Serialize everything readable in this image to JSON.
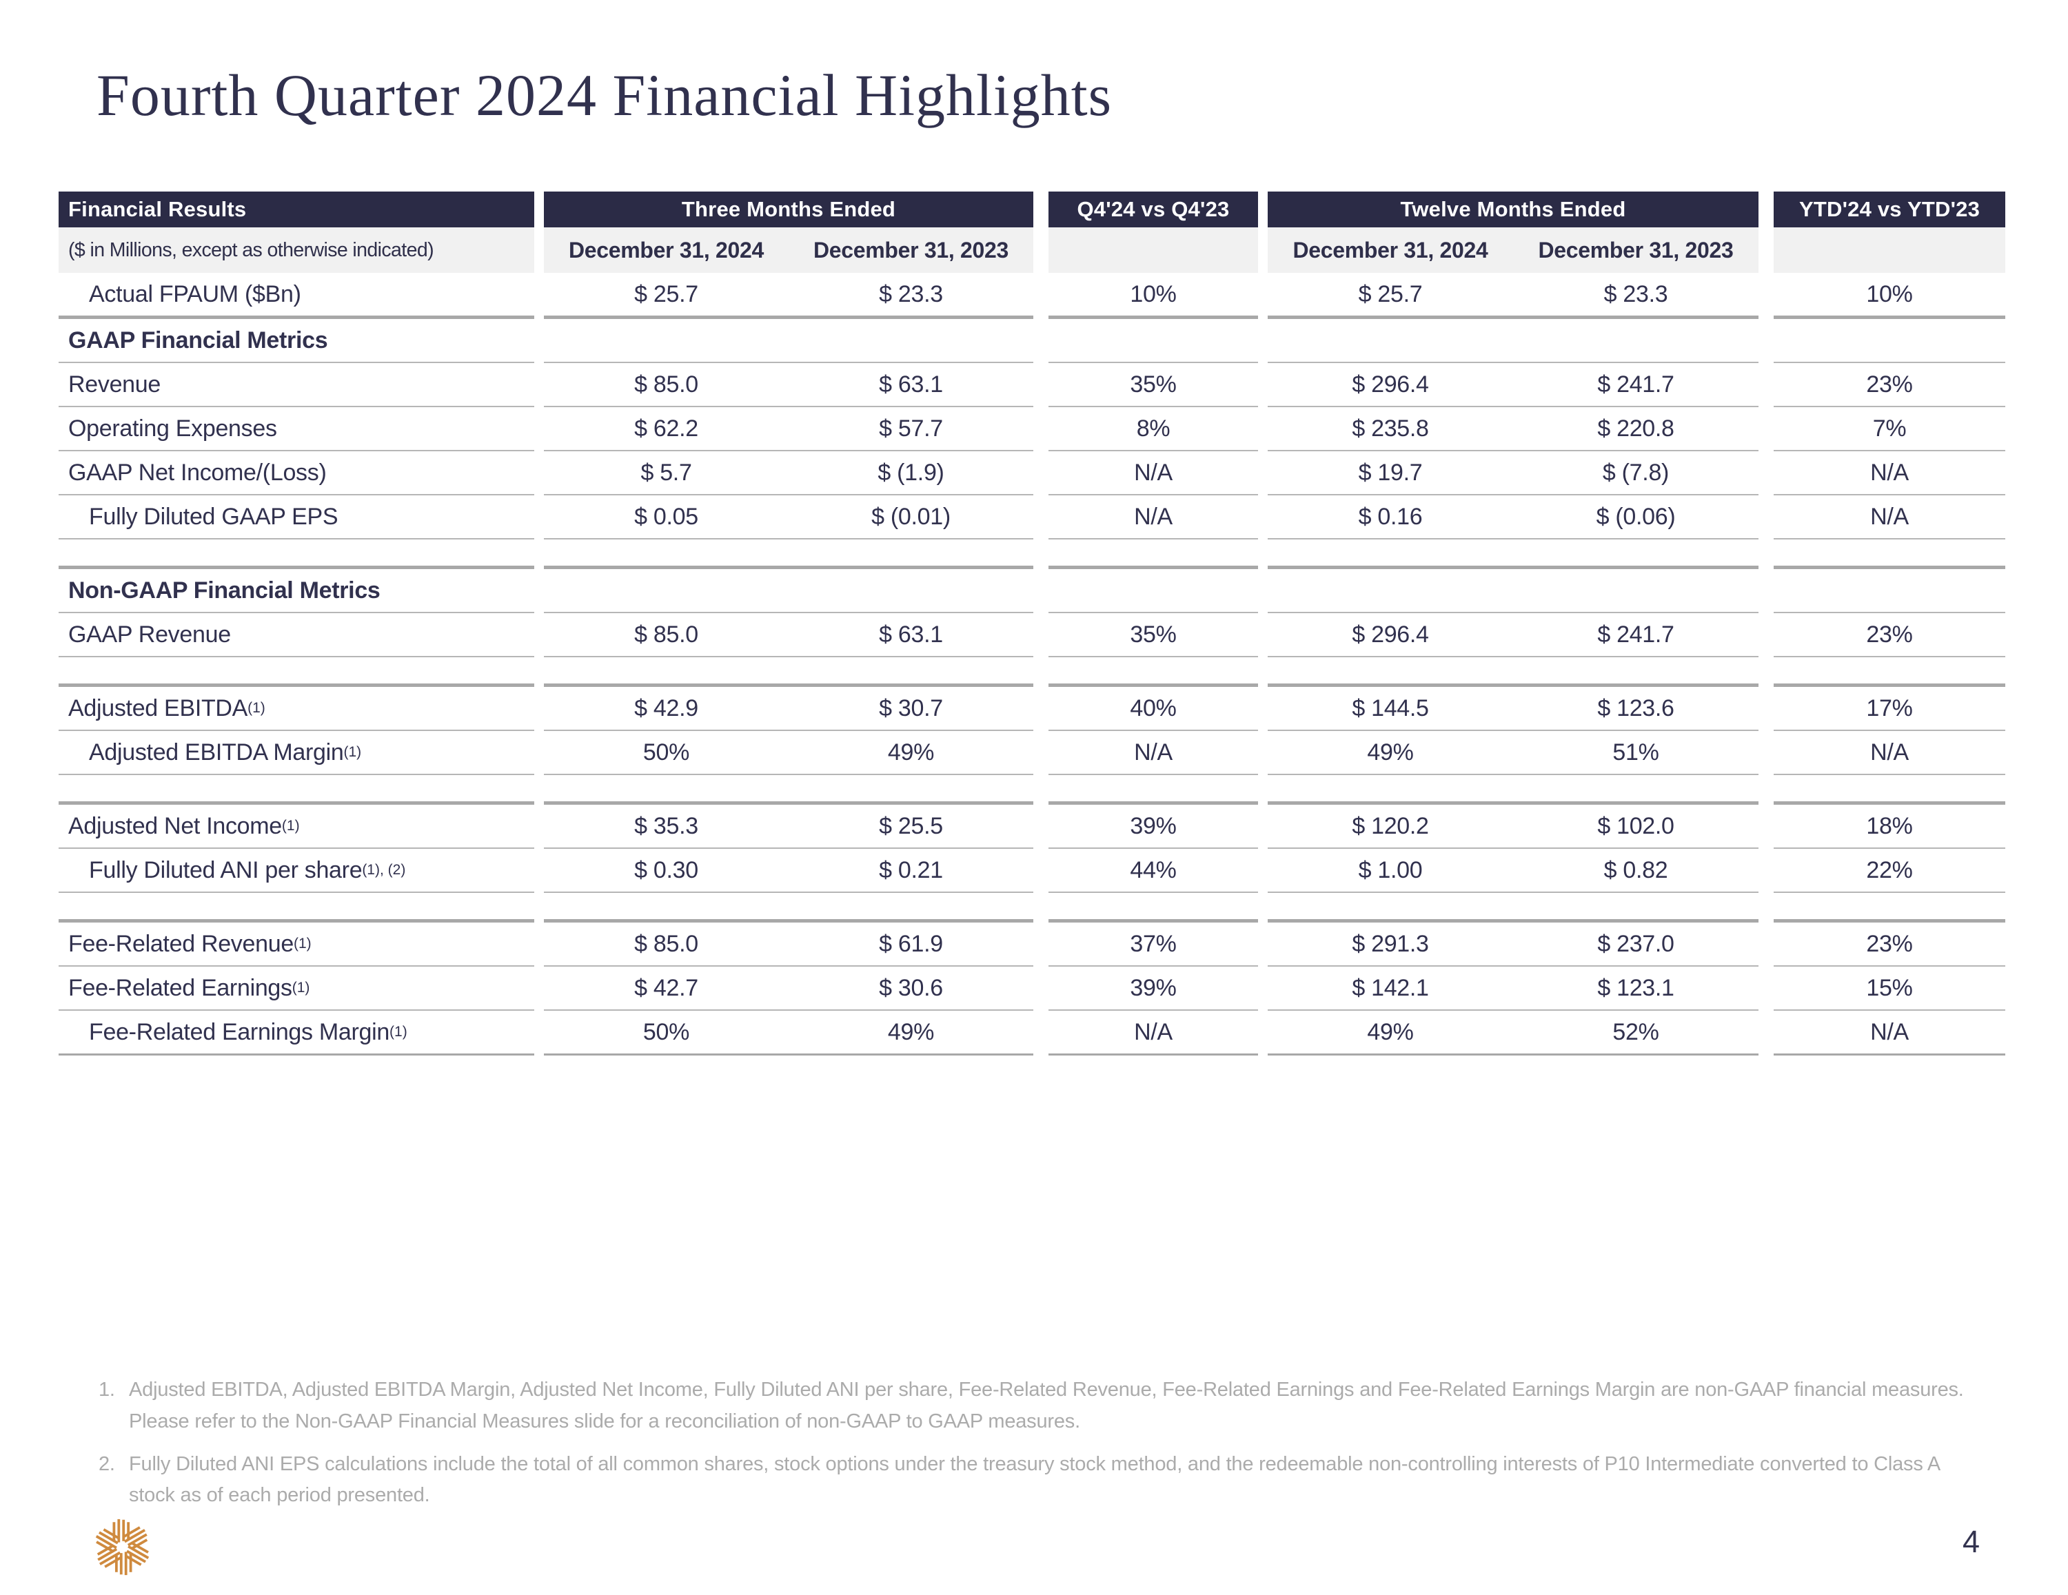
{
  "page": {
    "title": "Fourth Quarter 2024 Financial Highlights",
    "page_number": "4"
  },
  "colors": {
    "header_band": "#2b2b46",
    "text_navy": "#31314e",
    "subheader_bg": "#f1f1f1",
    "divider_gray": "#a8a8a8",
    "footnote_gray": "#ababab",
    "logo_orange": "#cf8a3e"
  },
  "table": {
    "groups": [
      {
        "label": "Financial Results",
        "sub": "($ in Millions, except as otherwise indicated)"
      },
      {
        "label": "Three Months Ended",
        "cols": [
          "December 31, 2024",
          "December 31, 2023"
        ]
      },
      {
        "label": "Q4'24 vs Q4'23"
      },
      {
        "label": "Twelve Months Ended",
        "cols": [
          "December 31, 2024",
          "December 31, 2023"
        ]
      },
      {
        "label": "YTD'24 vs YTD'23"
      }
    ],
    "rows": [
      {
        "type": "data",
        "indent": true,
        "label": "Actual FPAUM ($Bn)",
        "sup": "",
        "cells": [
          "$ 25.7",
          "$ 23.3",
          "10%",
          "$ 25.7",
          "$ 23.3",
          "10%"
        ],
        "border": "med"
      },
      {
        "type": "section",
        "label": "GAAP Financial Metrics",
        "border": "thin"
      },
      {
        "type": "data",
        "label": "Revenue",
        "sup": "",
        "cells": [
          "$ 85.0",
          "$ 63.1",
          "35%",
          "$ 296.4",
          "$ 241.7",
          "23%"
        ],
        "border": "thin"
      },
      {
        "type": "data",
        "label": "Operating Expenses",
        "sup": "",
        "cells": [
          "$ 62.2",
          "$ 57.7",
          "8%",
          "$ 235.8",
          "$ 220.8",
          "7%"
        ],
        "border": "thin"
      },
      {
        "type": "data",
        "label": "GAAP Net Income/(Loss)",
        "sup": "",
        "cells": [
          "$ 5.7",
          "$ (1.9)",
          "N/A",
          "$ 19.7",
          "$ (7.8)",
          "N/A"
        ],
        "border": "thin"
      },
      {
        "type": "data",
        "indent": true,
        "label": "Fully Diluted GAAP EPS",
        "sup": "",
        "cells": [
          "$ 0.05",
          "$ (0.01)",
          "N/A",
          "$ 0.16",
          "$ (0.06)",
          "N/A"
        ],
        "border": "thin"
      },
      {
        "type": "spacer",
        "border": "med"
      },
      {
        "type": "section",
        "label": "Non-GAAP Financial Metrics",
        "border": "thin"
      },
      {
        "type": "data",
        "label": "GAAP Revenue",
        "sup": "",
        "cells": [
          "$ 85.0",
          "$ 63.1",
          "35%",
          "$ 296.4",
          "$ 241.7",
          "23%"
        ],
        "border": "thin"
      },
      {
        "type": "spacer",
        "border": "med"
      },
      {
        "type": "data",
        "label": "Adjusted EBITDA",
        "sup": "(1)",
        "cells": [
          "$ 42.9",
          "$ 30.7",
          "40%",
          "$ 144.5",
          "$ 123.6",
          "17%"
        ],
        "border": "thin"
      },
      {
        "type": "data",
        "indent": true,
        "label": "Adjusted EBITDA Margin",
        "sup": "(1)",
        "cells": [
          "50%",
          "49%",
          "N/A",
          "49%",
          "51%",
          "N/A"
        ],
        "border": "thin"
      },
      {
        "type": "spacer",
        "border": "med"
      },
      {
        "type": "data",
        "label": "Adjusted Net Income",
        "sup": "(1)",
        "cells": [
          "$ 35.3",
          "$ 25.5",
          "39%",
          "$ 120.2",
          "$ 102.0",
          "18%"
        ],
        "border": "thin"
      },
      {
        "type": "data",
        "indent": true,
        "label": "Fully Diluted ANI per share",
        "sup": "(1), (2)",
        "cells": [
          "$ 0.30",
          "$ 0.21",
          "44%",
          "$ 1.00",
          "$ 0.82",
          "22%"
        ],
        "border": "thin"
      },
      {
        "type": "spacer",
        "border": "med"
      },
      {
        "type": "data",
        "label": "Fee-Related Revenue",
        "sup": "(1)",
        "cells": [
          "$ 85.0",
          "$ 61.9",
          "37%",
          "$ 291.3",
          "$ 237.0",
          "23%"
        ],
        "border": "thin"
      },
      {
        "type": "data",
        "label": "Fee-Related Earnings",
        "sup": "(1)",
        "cells": [
          "$ 42.7",
          "$ 30.6",
          "39%",
          "$ 142.1",
          "$ 123.1",
          "15%"
        ],
        "border": "thin"
      },
      {
        "type": "data",
        "indent": true,
        "label": "Fee-Related Earnings Margin",
        "sup": "(1)",
        "cells": [
          "50%",
          "49%",
          "N/A",
          "49%",
          "52%",
          "N/A"
        ],
        "border": "end"
      }
    ]
  },
  "footnotes": [
    {
      "num": "1.",
      "text": "Adjusted EBITDA, Adjusted EBITDA Margin, Adjusted Net Income, Fully Diluted ANI per share, Fee-Related Revenue, Fee-Related Earnings and Fee-Related Earnings Margin are non-GAAP financial measures. Please refer to the Non-GAAP Financial Measures slide for a reconciliation of non-GAAP to GAAP measures."
    },
    {
      "num": "2.",
      "text": "Fully Diluted ANI EPS calculations include the total of all common shares, stock options under the treasury stock method, and the redeemable non-controlling interests of P10 Intermediate converted to Class A stock as of each period presented."
    }
  ]
}
